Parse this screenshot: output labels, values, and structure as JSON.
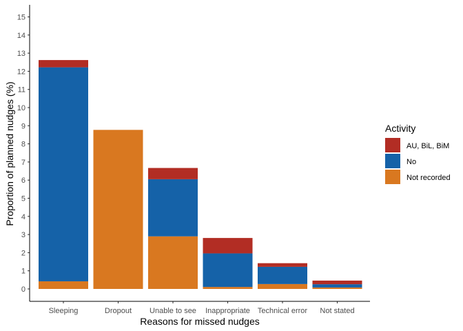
{
  "chart_data": {
    "type": "bar",
    "stacked": true,
    "xlabel": "Reasons for missed nudges",
    "ylabel": "Proportion of planned nudges (%)",
    "ylim": [
      0,
      15.6
    ],
    "yticks": [
      0,
      1,
      2,
      3,
      4,
      5,
      6,
      7,
      8,
      9,
      10,
      11,
      12,
      13,
      14,
      15
    ],
    "grid": false,
    "categories": [
      "Sleeping",
      "Dropout",
      "Unable to see",
      "Inappropriate",
      "Technical error",
      "Not stated"
    ],
    "series": [
      {
        "name": "Not recorded",
        "color": "#D97820",
        "values": [
          0.42,
          8.77,
          2.9,
          0.11,
          0.27,
          0.08
        ]
      },
      {
        "name": "No",
        "color": "#1562A8",
        "values": [
          11.8,
          0,
          3.15,
          1.85,
          0.95,
          0.18
        ]
      },
      {
        "name": "AU, BiL, BiM",
        "color": "#B22D24",
        "values": [
          0.4,
          0,
          0.62,
          0.85,
          0.2,
          0.2
        ]
      }
    ],
    "legend": {
      "title": "Activity",
      "position": "right",
      "order": [
        "AU, BiL, BiM",
        "No",
        "Not recorded"
      ]
    }
  }
}
